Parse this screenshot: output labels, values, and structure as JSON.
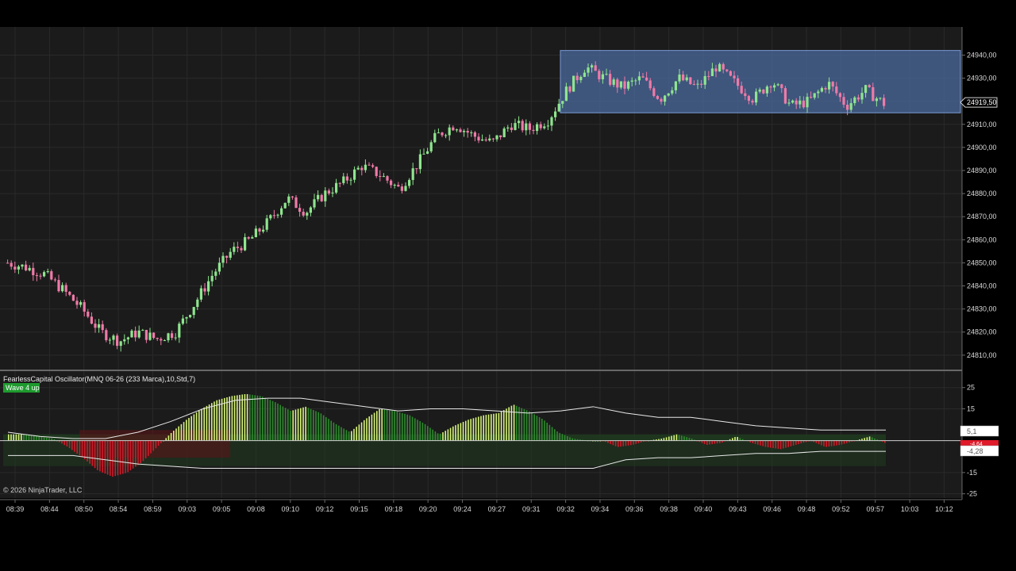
{
  "colors": {
    "background": "#000000",
    "plot_background": "#1b1b1b",
    "grid": "#2a2a2a",
    "candle_up": "#8ee58e",
    "candle_down": "#ef7aa8",
    "zone_fill": "#4b6a9e",
    "zone_stroke": "#7c9bd4",
    "osc_up_bright": "#d8f57a",
    "osc_up_dark": "#2f8a2f",
    "osc_down": "#d11a2a",
    "osc_band_green": "#1f3a1f",
    "osc_band_red": "#5a1518",
    "badge_green": "#1e9a2e",
    "tag_red": "#e01a2a"
  },
  "price_panel": {
    "price_tag_label": "24919,50"
  },
  "oscillator_panel": {
    "indicator_label": "FearlessCapital Oscillator(MNQ 06-26 (233 Marca),10,Std,7)",
    "wave_badge": "Wave 4 up",
    "value_tag_upper": "5,1",
    "value_tag_lower": "-4,28",
    "value_tag_red": "-4,64"
  },
  "copyright": "© 2026 NinjaTrader, LLC",
  "chart_data": [
    {
      "type": "candlestick",
      "y_ticks": [
        "24940,00",
        "24930,00",
        "24920,00",
        "24910,00",
        "24900,00",
        "24890,00",
        "24880,00",
        "24870,00",
        "24860,00",
        "24850,00",
        "24840,00",
        "24830,00",
        "24820,00",
        "24810,00"
      ],
      "y_tick_values": [
        24940,
        24930,
        24920,
        24910,
        24900,
        24890,
        24880,
        24870,
        24860,
        24850,
        24840,
        24830,
        24820,
        24810
      ],
      "ylim": [
        24806.5,
        24946
      ],
      "x_ticks": [
        "08:39",
        "08:44",
        "08:50",
        "08:54",
        "08:59",
        "09:03",
        "09:05",
        "09:08",
        "09:10",
        "09:12",
        "09:15",
        "09:18",
        "09:20",
        "09:24",
        "09:27",
        "09:31",
        "09:32",
        "09:34",
        "09:36",
        "09:38",
        "09:40",
        "09:43",
        "09:46",
        "09:48",
        "09:52",
        "09:57",
        "10:03",
        "10:12"
      ],
      "close_path": [
        24850,
        24848,
        24845,
        24838,
        24830,
        24820,
        24816,
        24820,
        24817,
        24820,
        24832,
        24845,
        24855,
        24860,
        24868,
        24878,
        24872,
        24880,
        24885,
        24892,
        24888,
        24882,
        24893,
        24905,
        24910,
        24905,
        24902,
        24910,
        24908,
        24912,
        24925,
        24935,
        24930,
        24926,
        24930,
        24921,
        24930,
        24926,
        24935,
        24928,
        24921,
        24929,
        24918,
        24920,
        24928,
        24918,
        24925,
        24919
      ],
      "last_price": 24919.5,
      "zone": {
        "label": "",
        "high": 24942,
        "low": 24915
      }
    },
    {
      "type": "bar",
      "y_ticks": [
        "25",
        "15",
        "-15",
        "-25"
      ],
      "y_tick_values": [
        25,
        15,
        -15,
        -25
      ],
      "ylim": [
        -27,
        29
      ],
      "zero_line": 0,
      "histogram_path": [
        3,
        3,
        2,
        1,
        -3,
        -8,
        -14,
        -17,
        -15,
        -10,
        -3,
        4,
        10,
        15,
        19,
        21,
        22,
        21,
        18,
        14,
        16,
        13,
        8,
        4,
        10,
        15,
        14,
        12,
        8,
        3,
        7,
        10,
        12,
        13,
        17,
        14,
        10,
        4,
        1,
        0,
        0,
        -3,
        -2,
        0,
        1,
        3,
        1,
        -2,
        -1,
        2,
        -1,
        -3,
        -4,
        -2,
        0,
        -3,
        -2,
        0,
        2,
        -1
      ],
      "signal_line_upper": [
        4,
        2,
        1,
        1,
        4,
        9,
        15,
        19,
        20,
        20,
        18,
        16,
        14,
        15,
        15,
        14,
        13,
        14,
        16,
        13,
        11,
        11,
        9,
        7,
        6,
        5,
        5,
        5
      ],
      "signal_line_lower": [
        -7,
        -7,
        -7,
        -9,
        -11,
        -12,
        -13,
        -13,
        -13,
        -13,
        -13,
        -13,
        -13,
        -13,
        -13,
        -13,
        -13,
        -13,
        -13,
        -9,
        -8,
        -8,
        -7,
        -6,
        -6,
        -5,
        -5,
        -5
      ]
    }
  ]
}
